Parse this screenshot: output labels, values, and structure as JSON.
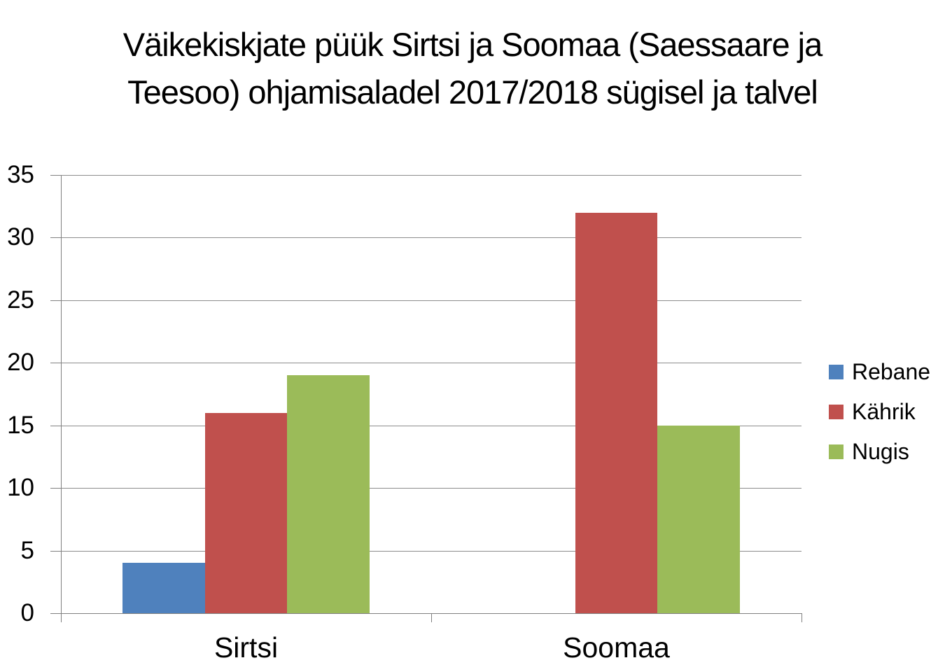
{
  "title": {
    "line1": "Väikekiskjate püük Sirtsi ja Soomaa (Saessaare ja",
    "line2": "Teesoo) ohjamisaladel 2017/2018 sügisel ja talvel"
  },
  "chart_data": {
    "type": "bar",
    "title": "Väikekiskjate püük Sirtsi ja Soomaa (Saessaare ja Teesoo) ohjamisaladel 2017/2018 sügisel ja talvel",
    "categories": [
      "Sirtsi",
      "Soomaa"
    ],
    "series": [
      {
        "name": "Rebane",
        "color": "#4F81BD",
        "values": [
          4,
          0
        ]
      },
      {
        "name": "Kährik",
        "color": "#C0504D",
        "values": [
          16,
          32
        ]
      },
      {
        "name": "Nugis",
        "color": "#9BBB59",
        "values": [
          19,
          15
        ]
      }
    ],
    "xlabel": "",
    "ylabel": "",
    "ylim": [
      0,
      35
    ],
    "yticks": [
      0,
      5,
      10,
      15,
      20,
      25,
      30,
      35
    ],
    "grid": true,
    "legend_position": "right",
    "gridline_color": "#8C8C8C",
    "axis_color": "#808080",
    "text_color": "#000000",
    "background": "#FFFFFF"
  }
}
